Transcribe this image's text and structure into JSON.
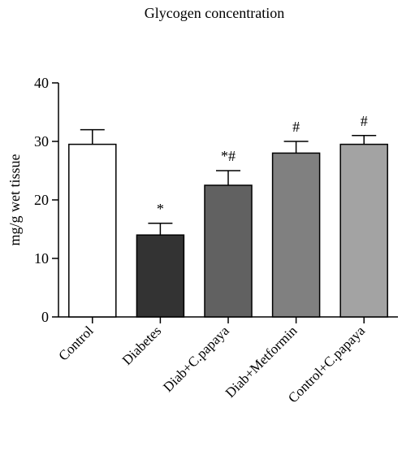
{
  "chart_data": {
    "type": "bar",
    "title": "Glycogen concentration",
    "xlabel": "",
    "ylabel": "mg/g wet tissue",
    "ylim": [
      0,
      40
    ],
    "yticks": [
      "0",
      "10",
      "20",
      "30",
      "40"
    ],
    "categories": [
      "Control",
      "Diabetes",
      "Diab+C.papaya",
      "Diab+Metformin",
      "Control+C.papaya"
    ],
    "values": [
      29.5,
      14,
      22.5,
      28,
      29.5
    ],
    "error": [
      2.5,
      2,
      2.5,
      2,
      1.5
    ],
    "annotations": [
      "",
      "*",
      "*#",
      "#",
      "#"
    ],
    "bar_colors": [
      "#ffffff",
      "#333333",
      "#616161",
      "#808080",
      "#a3a3a3"
    ],
    "bar_edge_color": "#000000",
    "grid": false
  }
}
